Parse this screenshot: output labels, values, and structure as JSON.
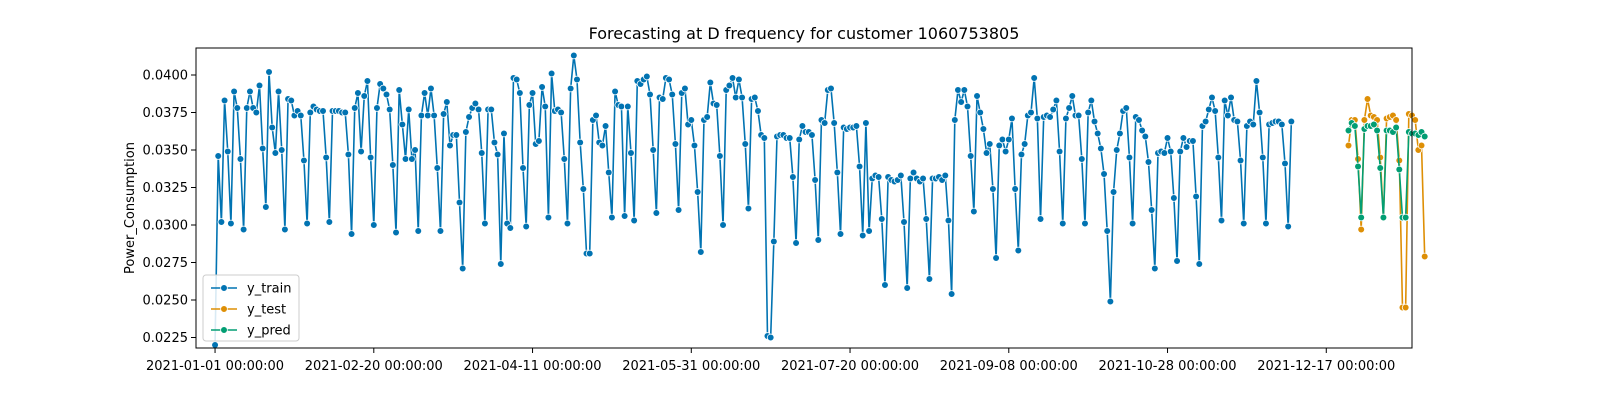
{
  "chart_data": {
    "type": "line",
    "title": "Forecasting at D frequency for customer 1060753805",
    "xlabel": "",
    "ylabel": "Power_Consumption",
    "x_type": "date",
    "xlim": [
      "2020-12-26",
      "2022-01-13"
    ],
    "ylim": [
      0.0218,
      0.0418
    ],
    "yticks": [
      0.0225,
      0.025,
      0.0275,
      0.03,
      0.0325,
      0.035,
      0.0375,
      0.04
    ],
    "ytick_labels": [
      "0.0225",
      "0.0250",
      "0.0275",
      "0.0300",
      "0.0325",
      "0.0350",
      "0.0375",
      "0.0400"
    ],
    "xticks": [
      "2021-01-01",
      "2021-02-20",
      "2021-04-11",
      "2021-05-31",
      "2021-07-20",
      "2021-09-08",
      "2021-10-28",
      "2021-12-17"
    ],
    "xtick_labels": [
      "2021-01-01 00:00:00",
      "2021-02-20 00:00:00",
      "2021-04-11 00:00:00",
      "2021-05-31 00:00:00",
      "2021-07-20 00:00:00",
      "2021-09-08 00:00:00",
      "2021-10-28 00:00:00",
      "2021-12-17 00:00:00"
    ],
    "grid": false,
    "legend": "lower-left",
    "series": [
      {
        "name": "y_train",
        "color": "#0173b2",
        "start": "2021-01-01",
        "values": [
          0.022,
          0.0346,
          0.0302,
          0.0383,
          0.0349,
          0.0301,
          0.0389,
          0.0378,
          0.0344,
          0.0297,
          0.0378,
          0.0389,
          0.0378,
          0.0375,
          0.0393,
          0.0351,
          0.0312,
          0.0402,
          0.0365,
          0.0348,
          0.0389,
          0.035,
          0.0297,
          0.0384,
          0.0383,
          0.0373,
          0.0376,
          0.0373,
          0.0343,
          0.0301,
          0.0375,
          0.0379,
          0.0377,
          0.0376,
          0.0376,
          0.0345,
          0.0302,
          0.0376,
          0.0376,
          0.0376,
          0.0375,
          0.0375,
          0.0347,
          0.0294,
          0.0378,
          0.0388,
          0.0349,
          0.0386,
          0.0396,
          0.0345,
          0.03,
          0.0378,
          0.0394,
          0.0391,
          0.0387,
          0.0377,
          0.034,
          0.0295,
          0.039,
          0.0367,
          0.0344,
          0.0377,
          0.0344,
          0.035,
          0.0296,
          0.0373,
          0.0388,
          0.0373,
          0.0391,
          0.0373,
          0.0338,
          0.0296,
          0.0374,
          0.0382,
          0.0353,
          0.036,
          0.036,
          0.0315,
          0.0271,
          0.0362,
          0.0372,
          0.0378,
          0.0381,
          0.0377,
          0.0348,
          0.0301,
          0.0377,
          0.0377,
          0.0355,
          0.0347,
          0.0274,
          0.0361,
          0.0301,
          0.0298,
          0.0398,
          0.0397,
          0.0388,
          0.0338,
          0.0299,
          0.038,
          0.0388,
          0.0354,
          0.0356,
          0.0392,
          0.0379,
          0.0305,
          0.0401,
          0.0376,
          0.0377,
          0.0375,
          0.0344,
          0.0301,
          0.0391,
          0.0413,
          0.0397,
          0.0355,
          0.0324,
          0.0281,
          0.0281,
          0.037,
          0.0373,
          0.0355,
          0.0353,
          0.0366,
          0.0335,
          0.0305,
          0.0389,
          0.038,
          0.0379,
          0.0306,
          0.0379,
          0.0348,
          0.0303,
          0.0396,
          0.0394,
          0.0397,
          0.0399,
          0.0387,
          0.035,
          0.0308,
          0.0385,
          0.0384,
          0.0398,
          0.0397,
          0.0387,
          0.0354,
          0.031,
          0.0388,
          0.0391,
          0.0367,
          0.037,
          0.0353,
          0.0322,
          0.0282,
          0.037,
          0.0372,
          0.0395,
          0.0381,
          0.038,
          0.0346,
          0.03,
          0.039,
          0.0393,
          0.0398,
          0.0385,
          0.0397,
          0.0385,
          0.0354,
          0.0311,
          0.0384,
          0.0385,
          0.0376,
          0.036,
          0.0358,
          0.0226,
          0.0225,
          0.0289,
          0.0359,
          0.036,
          0.036,
          0.0358,
          0.0358,
          0.0332,
          0.0288,
          0.0357,
          0.0366,
          0.0362,
          0.0362,
          0.036,
          0.033,
          0.029,
          0.037,
          0.0368,
          0.039,
          0.0391,
          0.0368,
          0.0335,
          0.0294,
          0.0365,
          0.0364,
          0.0365,
          0.0365,
          0.0366,
          0.0339,
          0.0293,
          0.0368,
          0.0296,
          0.0331,
          0.0333,
          0.0332,
          0.0304,
          0.026,
          0.0332,
          0.033,
          0.0329,
          0.033,
          0.0333,
          0.0302,
          0.0258,
          0.0331,
          0.0335,
          0.0331,
          0.0329,
          0.0331,
          0.0304,
          0.0264,
          0.0331,
          0.0331,
          0.0332,
          0.033,
          0.0333,
          0.0303,
          0.0254,
          0.037,
          0.039,
          0.0382,
          0.039,
          0.0379,
          0.0346,
          0.0309,
          0.0386,
          0.0375,
          0.0364,
          0.0348,
          0.0354,
          0.0324,
          0.0278,
          0.0353,
          0.0357,
          0.0349,
          0.0357,
          0.0371,
          0.0324,
          0.0283,
          0.0347,
          0.0354,
          0.0373,
          0.0375,
          0.0398,
          0.0371,
          0.0304,
          0.0372,
          0.0373,
          0.0372,
          0.0377,
          0.0383,
          0.0349,
          0.0301,
          0.0371,
          0.0378,
          0.0386,
          0.0373,
          0.0373,
          0.0344,
          0.0301,
          0.0375,
          0.0383,
          0.0369,
          0.0361,
          0.0351,
          0.0334,
          0.0296,
          0.0249,
          0.0322,
          0.035,
          0.0361,
          0.0376,
          0.0378,
          0.0345,
          0.0301,
          0.0372,
          0.037,
          0.0363,
          0.0359,
          0.0342,
          0.031,
          0.0271,
          0.0348,
          0.0349,
          0.0348,
          0.0358,
          0.0349,
          0.0318,
          0.0276,
          0.0349,
          0.0358,
          0.0352,
          0.0356,
          0.0356,
          0.0319,
          0.0274,
          0.0366,
          0.0369,
          0.0377,
          0.0385,
          0.0376,
          0.0345,
          0.0303,
          0.0383,
          0.0373,
          0.0385,
          0.037,
          0.0369,
          0.0343,
          0.0301,
          0.0366,
          0.0369,
          0.0367,
          0.0396,
          0.0375,
          0.0345,
          0.0301,
          0.0367,
          0.0368,
          0.0369,
          0.0369,
          0.0367,
          0.0341,
          0.0299,
          0.0369
        ]
      },
      {
        "name": "y_test",
        "color": "#de8f05",
        "start": "2021-12-24",
        "values": [
          0.0353,
          0.037,
          0.037,
          0.0344,
          0.0297,
          0.037,
          0.0384,
          0.0373,
          0.0372,
          0.037,
          0.0345,
          0.0305,
          0.0371,
          0.0372,
          0.0373,
          0.037,
          0.0343,
          0.0245,
          0.0245,
          0.0374,
          0.0373,
          0.037,
          0.035,
          0.0353,
          0.0279
        ]
      },
      {
        "name": "y_pred",
        "color": "#029e73",
        "start": "2021-12-24",
        "values": [
          0.0363,
          0.0368,
          0.0366,
          0.0339,
          0.0305,
          0.0364,
          0.0366,
          0.0366,
          0.0367,
          0.0363,
          0.0338,
          0.0305,
          0.0363,
          0.0363,
          0.0362,
          0.0365,
          0.0337,
          0.0305,
          0.0305,
          0.0362,
          0.0361,
          0.0361,
          0.036,
          0.0362,
          0.0359
        ]
      }
    ]
  }
}
